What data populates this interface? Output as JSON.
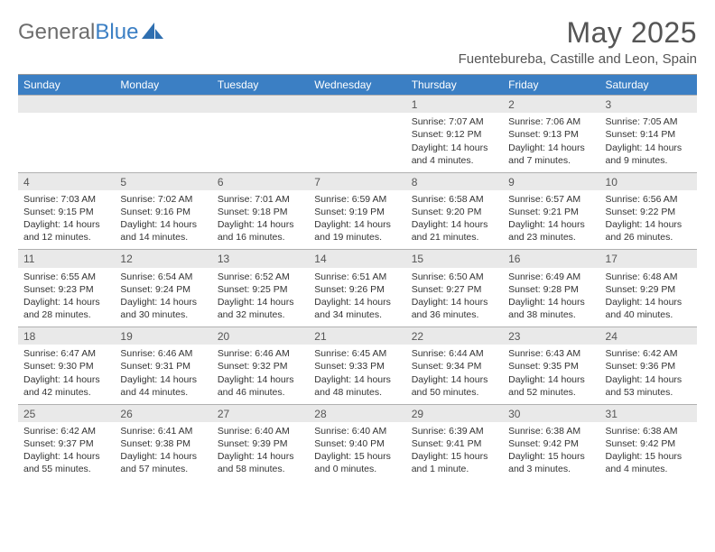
{
  "logo": {
    "text1": "General",
    "text2": "Blue"
  },
  "title": "May 2025",
  "location": "Fuentebureba, Castille and Leon, Spain",
  "dayHeaders": [
    "Sunday",
    "Monday",
    "Tuesday",
    "Wednesday",
    "Thursday",
    "Friday",
    "Saturday"
  ],
  "colors": {
    "headerBg": "#3b7fc4",
    "headerText": "#ffffff",
    "dayStripBg": "#e9e9e9",
    "bodyText": "#333333",
    "titleText": "#555555"
  },
  "weeks": [
    [
      null,
      null,
      null,
      null,
      {
        "n": "1",
        "sr": "Sunrise: 7:07 AM",
        "ss": "Sunset: 9:12 PM",
        "d1": "Daylight: 14 hours",
        "d2": "and 4 minutes."
      },
      {
        "n": "2",
        "sr": "Sunrise: 7:06 AM",
        "ss": "Sunset: 9:13 PM",
        "d1": "Daylight: 14 hours",
        "d2": "and 7 minutes."
      },
      {
        "n": "3",
        "sr": "Sunrise: 7:05 AM",
        "ss": "Sunset: 9:14 PM",
        "d1": "Daylight: 14 hours",
        "d2": "and 9 minutes."
      }
    ],
    [
      {
        "n": "4",
        "sr": "Sunrise: 7:03 AM",
        "ss": "Sunset: 9:15 PM",
        "d1": "Daylight: 14 hours",
        "d2": "and 12 minutes."
      },
      {
        "n": "5",
        "sr": "Sunrise: 7:02 AM",
        "ss": "Sunset: 9:16 PM",
        "d1": "Daylight: 14 hours",
        "d2": "and 14 minutes."
      },
      {
        "n": "6",
        "sr": "Sunrise: 7:01 AM",
        "ss": "Sunset: 9:18 PM",
        "d1": "Daylight: 14 hours",
        "d2": "and 16 minutes."
      },
      {
        "n": "7",
        "sr": "Sunrise: 6:59 AM",
        "ss": "Sunset: 9:19 PM",
        "d1": "Daylight: 14 hours",
        "d2": "and 19 minutes."
      },
      {
        "n": "8",
        "sr": "Sunrise: 6:58 AM",
        "ss": "Sunset: 9:20 PM",
        "d1": "Daylight: 14 hours",
        "d2": "and 21 minutes."
      },
      {
        "n": "9",
        "sr": "Sunrise: 6:57 AM",
        "ss": "Sunset: 9:21 PM",
        "d1": "Daylight: 14 hours",
        "d2": "and 23 minutes."
      },
      {
        "n": "10",
        "sr": "Sunrise: 6:56 AM",
        "ss": "Sunset: 9:22 PM",
        "d1": "Daylight: 14 hours",
        "d2": "and 26 minutes."
      }
    ],
    [
      {
        "n": "11",
        "sr": "Sunrise: 6:55 AM",
        "ss": "Sunset: 9:23 PM",
        "d1": "Daylight: 14 hours",
        "d2": "and 28 minutes."
      },
      {
        "n": "12",
        "sr": "Sunrise: 6:54 AM",
        "ss": "Sunset: 9:24 PM",
        "d1": "Daylight: 14 hours",
        "d2": "and 30 minutes."
      },
      {
        "n": "13",
        "sr": "Sunrise: 6:52 AM",
        "ss": "Sunset: 9:25 PM",
        "d1": "Daylight: 14 hours",
        "d2": "and 32 minutes."
      },
      {
        "n": "14",
        "sr": "Sunrise: 6:51 AM",
        "ss": "Sunset: 9:26 PM",
        "d1": "Daylight: 14 hours",
        "d2": "and 34 minutes."
      },
      {
        "n": "15",
        "sr": "Sunrise: 6:50 AM",
        "ss": "Sunset: 9:27 PM",
        "d1": "Daylight: 14 hours",
        "d2": "and 36 minutes."
      },
      {
        "n": "16",
        "sr": "Sunrise: 6:49 AM",
        "ss": "Sunset: 9:28 PM",
        "d1": "Daylight: 14 hours",
        "d2": "and 38 minutes."
      },
      {
        "n": "17",
        "sr": "Sunrise: 6:48 AM",
        "ss": "Sunset: 9:29 PM",
        "d1": "Daylight: 14 hours",
        "d2": "and 40 minutes."
      }
    ],
    [
      {
        "n": "18",
        "sr": "Sunrise: 6:47 AM",
        "ss": "Sunset: 9:30 PM",
        "d1": "Daylight: 14 hours",
        "d2": "and 42 minutes."
      },
      {
        "n": "19",
        "sr": "Sunrise: 6:46 AM",
        "ss": "Sunset: 9:31 PM",
        "d1": "Daylight: 14 hours",
        "d2": "and 44 minutes."
      },
      {
        "n": "20",
        "sr": "Sunrise: 6:46 AM",
        "ss": "Sunset: 9:32 PM",
        "d1": "Daylight: 14 hours",
        "d2": "and 46 minutes."
      },
      {
        "n": "21",
        "sr": "Sunrise: 6:45 AM",
        "ss": "Sunset: 9:33 PM",
        "d1": "Daylight: 14 hours",
        "d2": "and 48 minutes."
      },
      {
        "n": "22",
        "sr": "Sunrise: 6:44 AM",
        "ss": "Sunset: 9:34 PM",
        "d1": "Daylight: 14 hours",
        "d2": "and 50 minutes."
      },
      {
        "n": "23",
        "sr": "Sunrise: 6:43 AM",
        "ss": "Sunset: 9:35 PM",
        "d1": "Daylight: 14 hours",
        "d2": "and 52 minutes."
      },
      {
        "n": "24",
        "sr": "Sunrise: 6:42 AM",
        "ss": "Sunset: 9:36 PM",
        "d1": "Daylight: 14 hours",
        "d2": "and 53 minutes."
      }
    ],
    [
      {
        "n": "25",
        "sr": "Sunrise: 6:42 AM",
        "ss": "Sunset: 9:37 PM",
        "d1": "Daylight: 14 hours",
        "d2": "and 55 minutes."
      },
      {
        "n": "26",
        "sr": "Sunrise: 6:41 AM",
        "ss": "Sunset: 9:38 PM",
        "d1": "Daylight: 14 hours",
        "d2": "and 57 minutes."
      },
      {
        "n": "27",
        "sr": "Sunrise: 6:40 AM",
        "ss": "Sunset: 9:39 PM",
        "d1": "Daylight: 14 hours",
        "d2": "and 58 minutes."
      },
      {
        "n": "28",
        "sr": "Sunrise: 6:40 AM",
        "ss": "Sunset: 9:40 PM",
        "d1": "Daylight: 15 hours",
        "d2": "and 0 minutes."
      },
      {
        "n": "29",
        "sr": "Sunrise: 6:39 AM",
        "ss": "Sunset: 9:41 PM",
        "d1": "Daylight: 15 hours",
        "d2": "and 1 minute."
      },
      {
        "n": "30",
        "sr": "Sunrise: 6:38 AM",
        "ss": "Sunset: 9:42 PM",
        "d1": "Daylight: 15 hours",
        "d2": "and 3 minutes."
      },
      {
        "n": "31",
        "sr": "Sunrise: 6:38 AM",
        "ss": "Sunset: 9:42 PM",
        "d1": "Daylight: 15 hours",
        "d2": "and 4 minutes."
      }
    ]
  ]
}
